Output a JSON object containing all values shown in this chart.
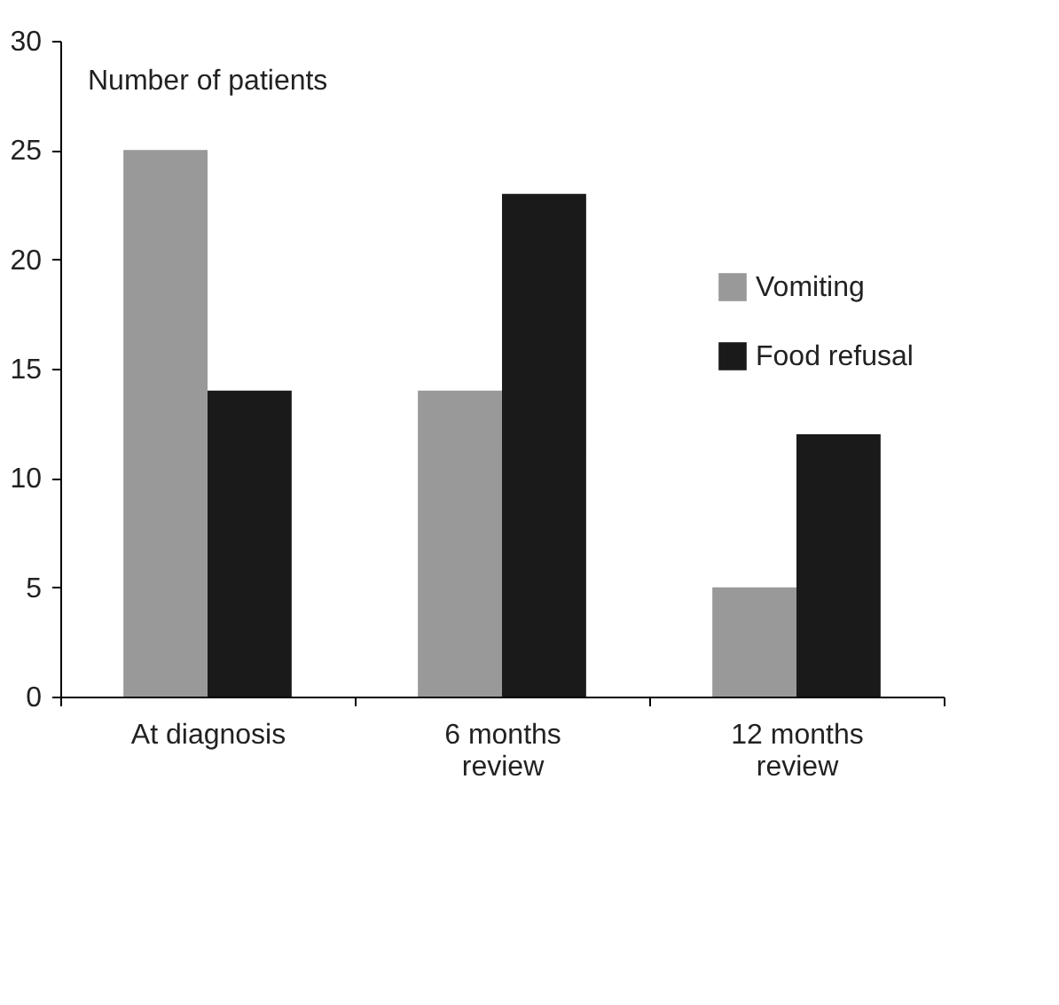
{
  "chart_data": {
    "type": "bar",
    "ylabel": "Number of patients",
    "categories": [
      "At diagnosis",
      "6 months review",
      "12 months review"
    ],
    "series": [
      {
        "name": "Vomiting",
        "color": "#999999",
        "values": [
          25,
          14,
          5
        ]
      },
      {
        "name": "Food refusal",
        "color": "#1a1a1a",
        "values": [
          14,
          23,
          12
        ]
      }
    ],
    "ylim": [
      0,
      30
    ],
    "yticks": [
      0,
      5,
      10,
      15,
      20,
      25,
      30
    ],
    "grid": false,
    "legend": "right"
  }
}
